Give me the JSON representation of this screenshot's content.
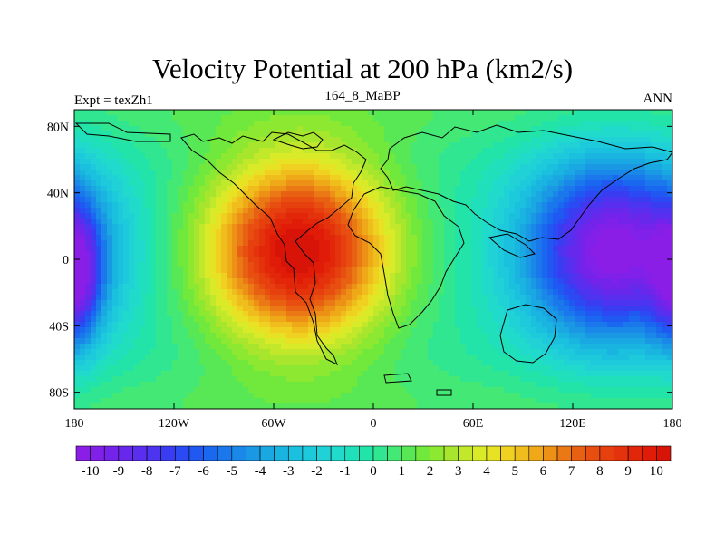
{
  "chart_data": {
    "type": "heatmap",
    "title": "Velocity Potential at 200 hPa (km2/s)",
    "left_string": "Expt = texZh1",
    "center_string": "164_8_MaBP",
    "right_string": "ANN",
    "x_ticks": [
      "180",
      "120W",
      "60W",
      "0",
      "60E",
      "120E",
      "180"
    ],
    "x_tick_values": [
      -180,
      -120,
      -60,
      0,
      60,
      120,
      180
    ],
    "y_ticks": [
      "80N",
      "40N",
      "0",
      "40S",
      "80S"
    ],
    "y_tick_values": [
      80,
      40,
      0,
      -40,
      -80
    ],
    "xlim": [
      -180,
      180
    ],
    "ylim": [
      -90,
      90
    ],
    "colorbar_labels": [
      "-10",
      "-9",
      "-8",
      "-7",
      "-6",
      "-5",
      "-4",
      "-3",
      "-2",
      "-1",
      "0",
      "1",
      "2",
      "3",
      "4",
      "5",
      "6",
      "7",
      "8",
      "9",
      "10"
    ],
    "colorbar_range": [
      -10.5,
      10.5
    ],
    "colorbar_step": 0.5,
    "colorbar_colors": [
      "#8a1ee6",
      "#8020e8",
      "#7424ea",
      "#6828ec",
      "#5a2eee",
      "#4c34f0",
      "#3a3cf2",
      "#2c4af4",
      "#2058f2",
      "#1a68f0",
      "#1a78ec",
      "#1a88e8",
      "#1a98e4",
      "#1aa8e2",
      "#1ab4e0",
      "#1ac0de",
      "#1ccadc",
      "#20d2d6",
      "#20dacc",
      "#20e0bc",
      "#22e4a8",
      "#30e690",
      "#44e874",
      "#58e856",
      "#70e83c",
      "#8ce830",
      "#a8e62e",
      "#c2e82c",
      "#d8ea28",
      "#e8e224",
      "#f0d020",
      "#f0be1c",
      "#eea818",
      "#ec9016",
      "#ea7814",
      "#e86012",
      "#e84e10",
      "#e6400e",
      "#e4320c",
      "#e2260a",
      "#e01c08",
      "#d81408"
    ],
    "field_centers": [
      {
        "lon": -45,
        "lat": 5,
        "value": 10
      },
      {
        "lon": 145,
        "lat": 5,
        "value": -10
      },
      {
        "lon": -175,
        "lat": -10,
        "value": -6
      }
    ],
    "field_description": "Annual-mean velocity potential: strong positive maximum over South America/Atlantic, strong negative minimum over the western Pacific/Indonesia"
  }
}
